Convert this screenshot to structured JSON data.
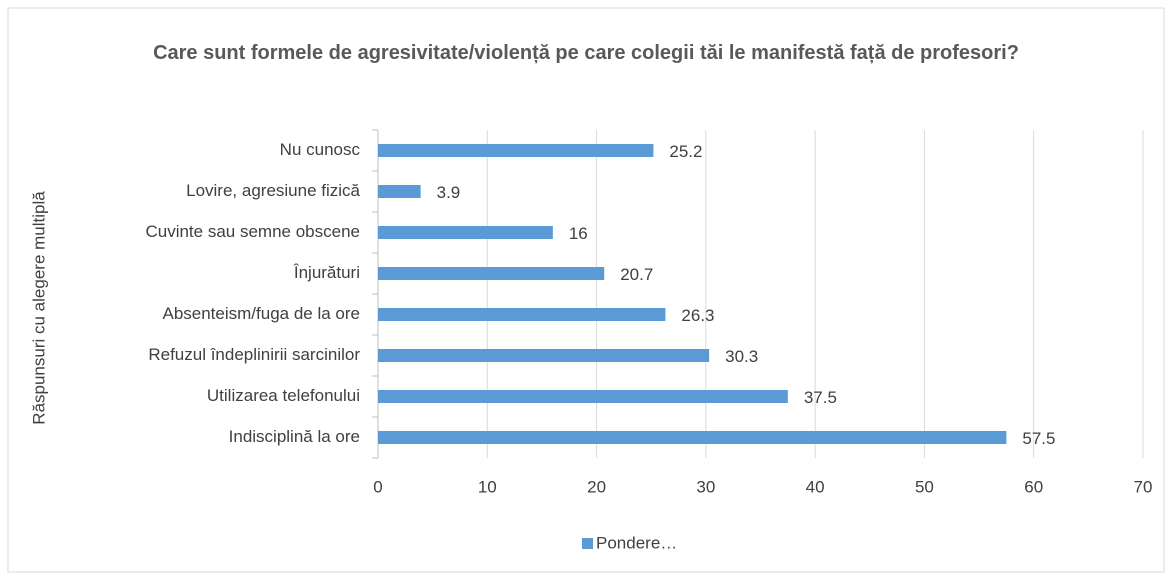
{
  "chart_data": {
    "type": "barh",
    "title": "Care sunt formele de agresivitate/violență pe care colegii tăi le manifestă față de profesori?",
    "y_label": "Răspunsuri cu alegere multiplă",
    "categories": [
      "Indisciplină la ore",
      "Utilizarea telefonului",
      "Refuzul îndeplinirii sarcinilor",
      "Absenteism/fuga de la ore",
      "Înjurături",
      "Cuvinte sau semne obscene",
      "Lovire, agresiune fizică",
      "Nu cunosc"
    ],
    "series": [
      {
        "name": "Pondere…",
        "color": "#5b9bd5",
        "values": [
          57.5,
          37.5,
          30.3,
          26.3,
          20.7,
          16,
          3.9,
          25.2
        ]
      }
    ],
    "xlim": [
      0,
      70
    ],
    "xticks": [
      0,
      10,
      20,
      30,
      40,
      50,
      60,
      70
    ],
    "grid": true,
    "legend": "bottom"
  }
}
